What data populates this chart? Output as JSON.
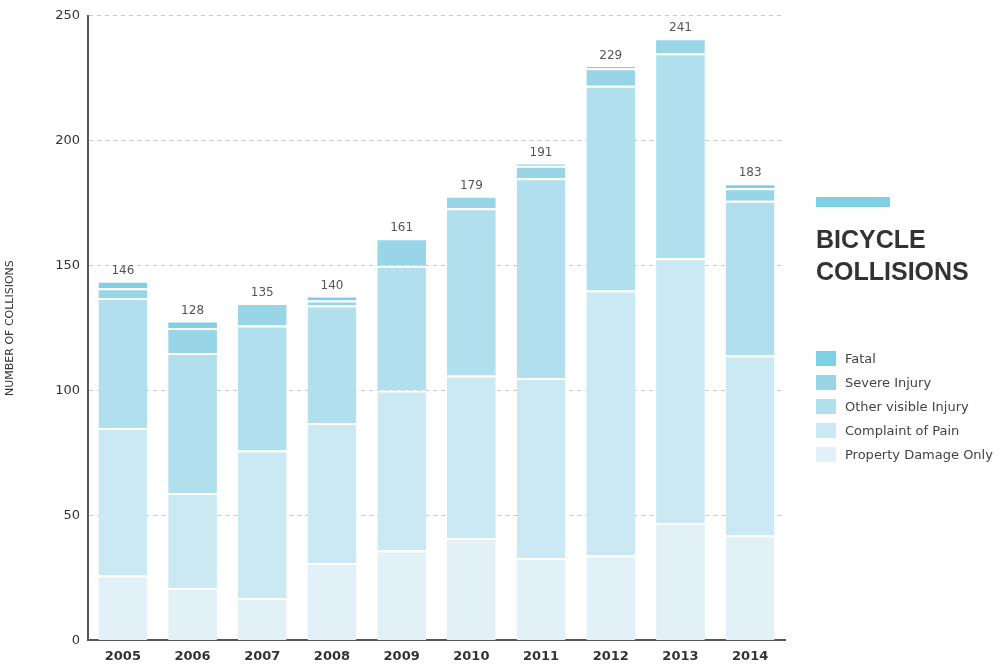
{
  "chart_data": {
    "type": "bar",
    "stacked": true,
    "title": "BICYCLE COLLISIONS",
    "ylabel": "NUMBER OF COLLISIONS",
    "categories": [
      "2005",
      "2006",
      "2007",
      "2008",
      "2009",
      "2010",
      "2011",
      "2012",
      "2013",
      "2014"
    ],
    "series": [
      {
        "name": "Property Damage Only",
        "color": "#e2f1f7",
        "values": [
          26,
          21,
          17,
          31,
          36,
          41,
          33,
          34,
          47,
          42
        ]
      },
      {
        "name": "Complaint of Pain",
        "color": "#cbe9f2",
        "values": [
          59,
          38,
          59,
          56,
          64,
          65,
          72,
          106,
          106,
          72
        ]
      },
      {
        "name": "Other visible Injury",
        "color": "#b1dfed",
        "values": [
          52,
          56,
          50,
          47,
          50,
          67,
          80,
          82,
          82,
          62
        ]
      },
      {
        "name": "Severe Injury",
        "color": "#98d5e7",
        "values": [
          4,
          10,
          9,
          2,
          11,
          5,
          5,
          7,
          6,
          5
        ]
      },
      {
        "name": "Fatal",
        "color": "#7fd0e3",
        "values": [
          3,
          3,
          0,
          2,
          0,
          0,
          1,
          1,
          0,
          2
        ]
      }
    ],
    "totals": [
      "146",
      "128",
      "135",
      "140",
      "161",
      "179",
      "191",
      "229",
      "241",
      "183"
    ],
    "ylim": [
      0,
      250
    ],
    "yticks": [
      0,
      50,
      100,
      150,
      200,
      250
    ],
    "grid": "y",
    "legend": "right"
  }
}
